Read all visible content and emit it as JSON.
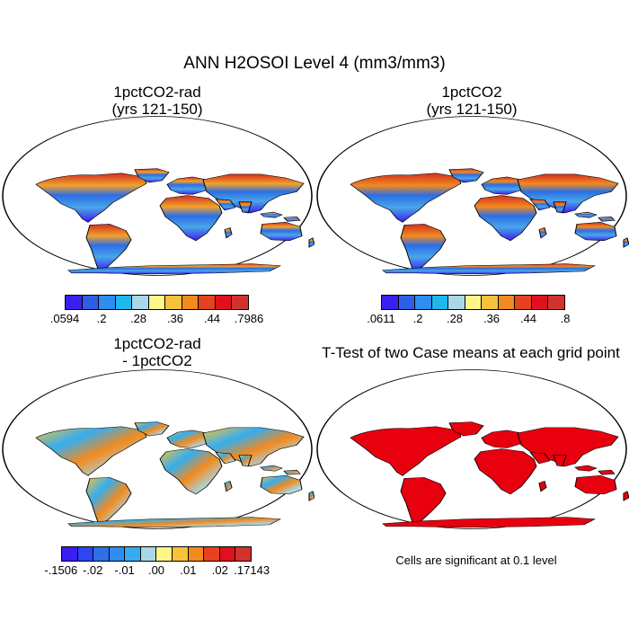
{
  "main_title": "ANN H2OSOI Level 4 (mm3/mm3)",
  "panels": {
    "top_left": {
      "title_line1": "1pctCO2-rad",
      "title_line2": "(yrs 121-150)"
    },
    "top_right": {
      "title_line1": "1pctCO2",
      "title_line2": "(yrs 121-150)"
    },
    "bottom_left": {
      "title_line1": "1pctCO2-rad",
      "title_line2": "- 1pctCO2"
    },
    "bottom_right": {
      "title": "T-Test of two Case means at each grid point"
    }
  },
  "colorbars": {
    "top_left": {
      "colors": [
        "#3b1ef2",
        "#2f5ee6",
        "#2c8ef0",
        "#1eb8f0",
        "#a8d8e8",
        "#fff68a",
        "#f8c23a",
        "#f28a1e",
        "#e6421e",
        "#e0101e",
        "#d2322e"
      ],
      "labels": [
        ".0594",
        ".2",
        ".28",
        ".36",
        ".44",
        ".7986"
      ]
    },
    "top_right": {
      "colors": [
        "#3b1ef2",
        "#2f5ee6",
        "#2c8ef0",
        "#1eb8f0",
        "#a8d8e8",
        "#fff68a",
        "#f8c23a",
        "#f28a1e",
        "#e6421e",
        "#e0101e",
        "#d2322e"
      ],
      "labels": [
        ".0611",
        ".2",
        ".28",
        ".36",
        ".44",
        ".8"
      ]
    },
    "bottom_left": {
      "colors": [
        "#3b1ef2",
        "#2f45f0",
        "#2f6ee6",
        "#2c8ef0",
        "#34aef0",
        "#a8d8e8",
        "#fff68a",
        "#f8c23a",
        "#f28a1e",
        "#e6421e",
        "#e0101e",
        "#d2322e"
      ],
      "labels": [
        "-.1506",
        "-.02",
        "-.01",
        ".00",
        ".01",
        ".02",
        ".17143"
      ]
    }
  },
  "significance_note": "Cells are significant at 0.1 level",
  "significance_color": "#e8000e"
}
